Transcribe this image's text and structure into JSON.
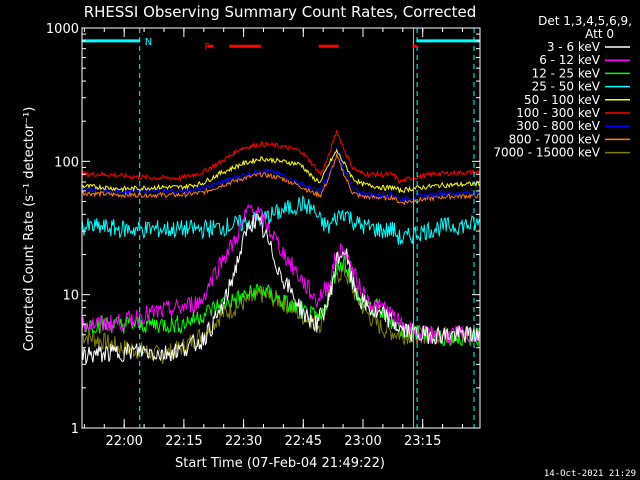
{
  "chart_data": {
    "type": "line",
    "title": "RHESSI Observing Summary Count Rates, Corrected",
    "xlabel": "Start Time (07-Feb-04 21:49:22)",
    "ylabel": "Corrected Count Rate (s⁻¹ detector⁻¹)",
    "yscale": "log",
    "ylim": [
      1,
      1000
    ],
    "xlim_minutes_after_21_49_22": [
      0,
      100
    ],
    "x_ticks": [
      {
        "label": "22:00",
        "min": 10.6
      },
      {
        "label": "22:15",
        "min": 25.6
      },
      {
        "label": "22:30",
        "min": 40.6
      },
      {
        "label": "22:45",
        "min": 55.6
      },
      {
        "label": "23:00",
        "min": 70.6
      },
      {
        "label": "23:15",
        "min": 85.6
      }
    ],
    "y_ticks": [
      {
        "label": "1000",
        "value": 1000
      },
      {
        "label": "100",
        "value": 100
      },
      {
        "label": "10",
        "value": 10
      },
      {
        "label": "1",
        "value": 1
      }
    ],
    "legend_header": [
      "Det 1,3,4,5,6,9,",
      "Att 0"
    ],
    "legend_placement": "right, outside plot",
    "series": [
      {
        "name": "3 - 6 keV",
        "color": "#ffffff",
        "x": [
          0,
          5,
          10,
          15,
          20,
          25,
          30,
          33,
          36,
          38,
          40,
          42,
          44,
          46,
          48,
          50,
          53,
          56,
          59,
          62,
          64,
          66,
          68,
          70,
          72,
          74,
          76,
          80,
          85,
          90,
          95,
          100
        ],
        "values": [
          3.5,
          3.6,
          3.7,
          3.8,
          3.6,
          3.9,
          4.5,
          6,
          9,
          14,
          22,
          34,
          36,
          28,
          20,
          14,
          10,
          7,
          6,
          9,
          18,
          22,
          12,
          9,
          8,
          7,
          7,
          5.5,
          5,
          5,
          5,
          5
        ]
      },
      {
        "name": "6 - 12 keV",
        "color": "#ff00ff",
        "x": [
          0,
          5,
          10,
          15,
          20,
          25,
          30,
          33,
          36,
          38,
          40,
          42,
          44,
          46,
          48,
          50,
          53,
          56,
          59,
          62,
          64,
          66,
          68,
          70,
          72,
          74,
          76,
          80,
          85,
          90,
          95,
          100
        ],
        "values": [
          6,
          6,
          6.2,
          7,
          7.5,
          8,
          9,
          14,
          20,
          24,
          32,
          45,
          42,
          34,
          28,
          22,
          16,
          12,
          9,
          12,
          20,
          22,
          15,
          11,
          9,
          8,
          8,
          6,
          5,
          5,
          5,
          5
        ]
      },
      {
        "name": "12 - 25 keV",
        "color": "#00ff00",
        "x": [
          0,
          5,
          10,
          15,
          20,
          25,
          30,
          35,
          40,
          45,
          50,
          55,
          60,
          62,
          64,
          66,
          68,
          70,
          72,
          74,
          76,
          80,
          85,
          90,
          95,
          100
        ],
        "values": [
          6,
          6,
          6,
          6,
          6,
          6,
          7,
          8.5,
          9.5,
          11,
          9,
          7.5,
          6.5,
          10,
          16,
          18,
          12,
          9,
          8,
          8,
          7,
          5.5,
          5,
          4.8,
          4.8,
          4.8
        ]
      },
      {
        "name": "25 - 50 keV",
        "color": "#00ffff",
        "x": [
          0,
          5,
          10,
          15,
          20,
          25,
          30,
          35,
          40,
          45,
          50,
          55,
          58,
          60,
          62,
          64,
          66,
          68,
          70,
          72,
          74,
          76,
          78,
          80,
          82,
          84,
          86,
          88,
          90,
          95,
          100
        ],
        "values": [
          32,
          32,
          31,
          31,
          31,
          31,
          31,
          32,
          34,
          37,
          42,
          48,
          44,
          35,
          32,
          38,
          42,
          36,
          33,
          32,
          31,
          30,
          31,
          26,
          27,
          29,
          30,
          31,
          32,
          33,
          34
        ]
      },
      {
        "name": "50 - 100 keV",
        "color": "#ffff00",
        "x": [
          0,
          5,
          10,
          15,
          20,
          25,
          30,
          35,
          40,
          45,
          50,
          55,
          58,
          60,
          62,
          64,
          66,
          68,
          70,
          72,
          74,
          76,
          78,
          80,
          82,
          84,
          86,
          88,
          90,
          95,
          100
        ],
        "values": [
          65,
          64,
          62,
          63,
          64,
          64,
          68,
          82,
          95,
          105,
          100,
          95,
          75,
          70,
          95,
          120,
          95,
          75,
          68,
          66,
          65,
          63,
          64,
          60,
          62,
          63,
          64,
          65,
          66,
          67,
          68
        ]
      },
      {
        "name": "100 - 300 keV",
        "color": "#ff0000",
        "x": [
          0,
          5,
          10,
          15,
          20,
          25,
          30,
          35,
          40,
          45,
          50,
          55,
          58,
          60,
          62,
          64,
          66,
          68,
          70,
          72,
          74,
          76,
          78,
          80,
          82,
          84,
          86,
          88,
          90,
          95,
          100
        ],
        "values": [
          80,
          80,
          78,
          76,
          75,
          75,
          82,
          100,
          125,
          135,
          130,
          120,
          95,
          80,
          110,
          170,
          120,
          90,
          82,
          80,
          80,
          79,
          80,
          70,
          74,
          76,
          78,
          80,
          81,
          82,
          83
        ]
      },
      {
        "name": "300 - 800 keV",
        "color": "#0000ff",
        "x": [
          0,
          5,
          10,
          15,
          20,
          25,
          30,
          35,
          40,
          45,
          50,
          55,
          58,
          60,
          62,
          64,
          66,
          68,
          70,
          72,
          74,
          76,
          78,
          80,
          82,
          84,
          86,
          88,
          90,
          95,
          100
        ],
        "values": [
          62,
          61,
          60,
          60,
          60,
          60,
          62,
          70,
          78,
          86,
          80,
          68,
          62,
          60,
          80,
          125,
          85,
          62,
          58,
          57,
          56,
          56,
          57,
          52,
          53,
          54,
          55,
          56,
          57,
          58,
          58
        ]
      },
      {
        "name": "800 - 7000 keV",
        "color": "#ff8000",
        "x": [
          0,
          5,
          10,
          15,
          20,
          25,
          30,
          35,
          40,
          45,
          50,
          55,
          58,
          60,
          62,
          64,
          66,
          68,
          70,
          72,
          74,
          76,
          78,
          80,
          82,
          84,
          86,
          88,
          90,
          95,
          100
        ],
        "values": [
          58,
          57,
          56,
          56,
          56,
          56,
          58,
          66,
          74,
          80,
          75,
          65,
          58,
          56,
          75,
          110,
          78,
          58,
          55,
          54,
          54,
          53,
          54,
          49,
          50,
          51,
          52,
          53,
          54,
          55,
          55
        ]
      },
      {
        "name": "7000 - 15000 keV",
        "color": "#808000",
        "x": [
          0,
          5,
          10,
          15,
          20,
          25,
          30,
          35,
          40,
          45,
          50,
          55,
          60,
          62,
          64,
          66,
          68,
          70,
          72,
          74,
          76,
          80,
          85,
          90,
          95,
          100
        ],
        "values": [
          5,
          4.5,
          4,
          3.8,
          3.5,
          4,
          5,
          7,
          8.5,
          10,
          9,
          7,
          6,
          10,
          14,
          15,
          11,
          8.5,
          7,
          6,
          5.5,
          5,
          5,
          5,
          5,
          5
        ]
      }
    ],
    "annotations": [
      {
        "text": "N",
        "min": 14.5,
        "value": 800
      },
      {
        "text": "F",
        "min": 29.5,
        "value": 730
      }
    ],
    "night_segments": [
      [
        0,
        14.5
      ],
      [
        84,
        100
      ]
    ],
    "saa_boundaries": [
      14.5,
      83.3,
      84.2,
      98.5
    ],
    "flare_segments": [
      [
        31.5,
        33.0
      ],
      [
        37.0,
        45.0
      ],
      [
        59.5,
        64.5
      ],
      [
        83.0,
        84.2
      ]
    ]
  },
  "footer_timestamp": "14-Oct-2021 21:29"
}
